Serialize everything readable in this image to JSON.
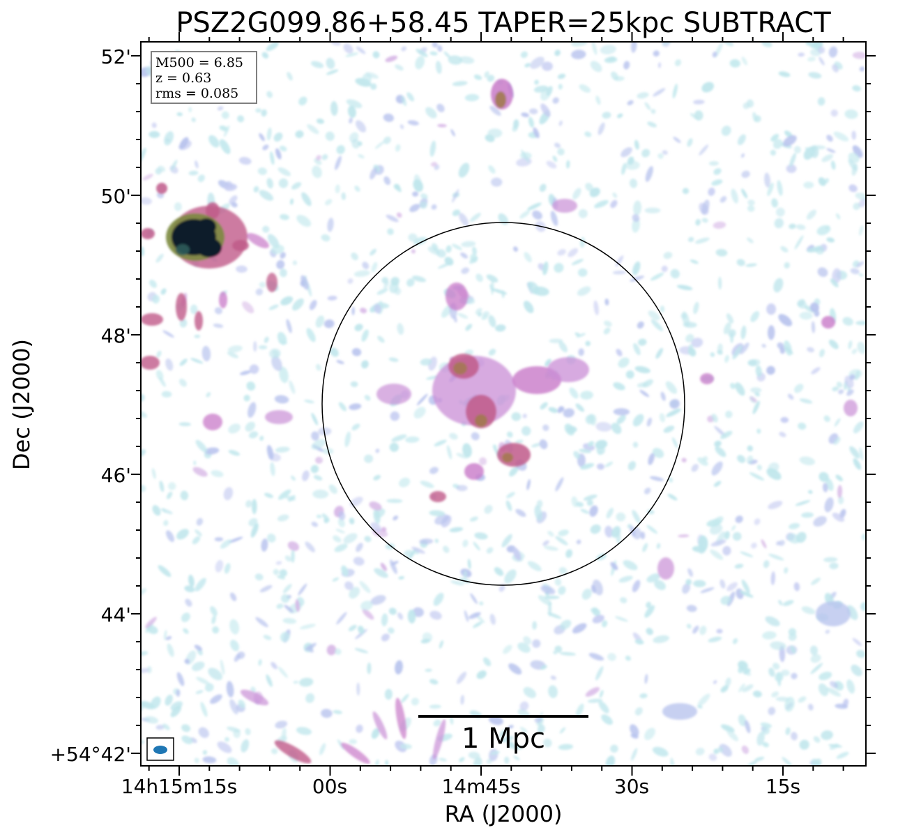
{
  "title": "PSZ2G099.86+58.45 TAPER=25kpc SUBTRACT",
  "axes": {
    "xlabel": "RA (J2000)",
    "ylabel": "Dec (J2000)",
    "ra_ticks": [
      "14h15m15s",
      "00s",
      "14m45s",
      "30s",
      "15s"
    ],
    "dec_ticks": [
      "+54°42'",
      "44'",
      "46'",
      "48'",
      "50'",
      "52'"
    ]
  },
  "info": {
    "line1": "M500 = 6.85",
    "line2": "z = 0.63",
    "line3": "rms = 0.085"
  },
  "scalebar": {
    "label": "1 Mpc"
  },
  "colors": {
    "frame": "#000000",
    "beam": "#1f77b4",
    "noise_light": "#bfe6ec",
    "noise_mid": "#b9c4ee",
    "emission": "#c879c8",
    "emission_strong": "#c05b8a",
    "emission_core": "#a07a4a",
    "bright_source": "#0b1f2a"
  }
}
